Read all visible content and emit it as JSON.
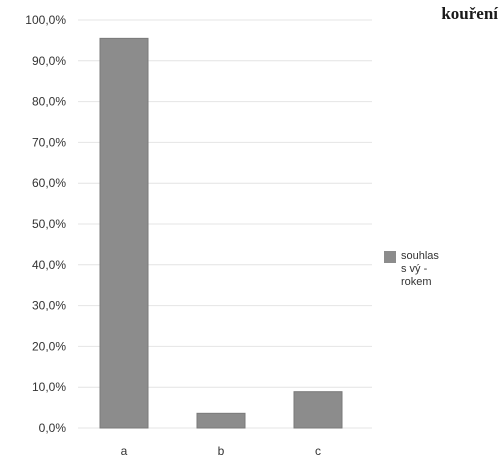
{
  "heading": "kouření",
  "chart_data": {
    "type": "bar",
    "categories": [
      "a",
      "b",
      "c"
    ],
    "series": [
      {
        "name": "souhlas s vý -\nrokem",
        "values": [
          95.5,
          3.6,
          8.9
        ]
      }
    ],
    "ylim": [
      0,
      100
    ],
    "y_ticks": [
      "0,0%",
      "10,0%",
      "20,0%",
      "30,0%",
      "40,0%",
      "50,0%",
      "60,0%",
      "70,0%",
      "80,0%",
      "90,0%",
      "100,0%"
    ],
    "grid": true,
    "legend_position": "right",
    "colors": {
      "bar": "#8c8c8c"
    }
  }
}
